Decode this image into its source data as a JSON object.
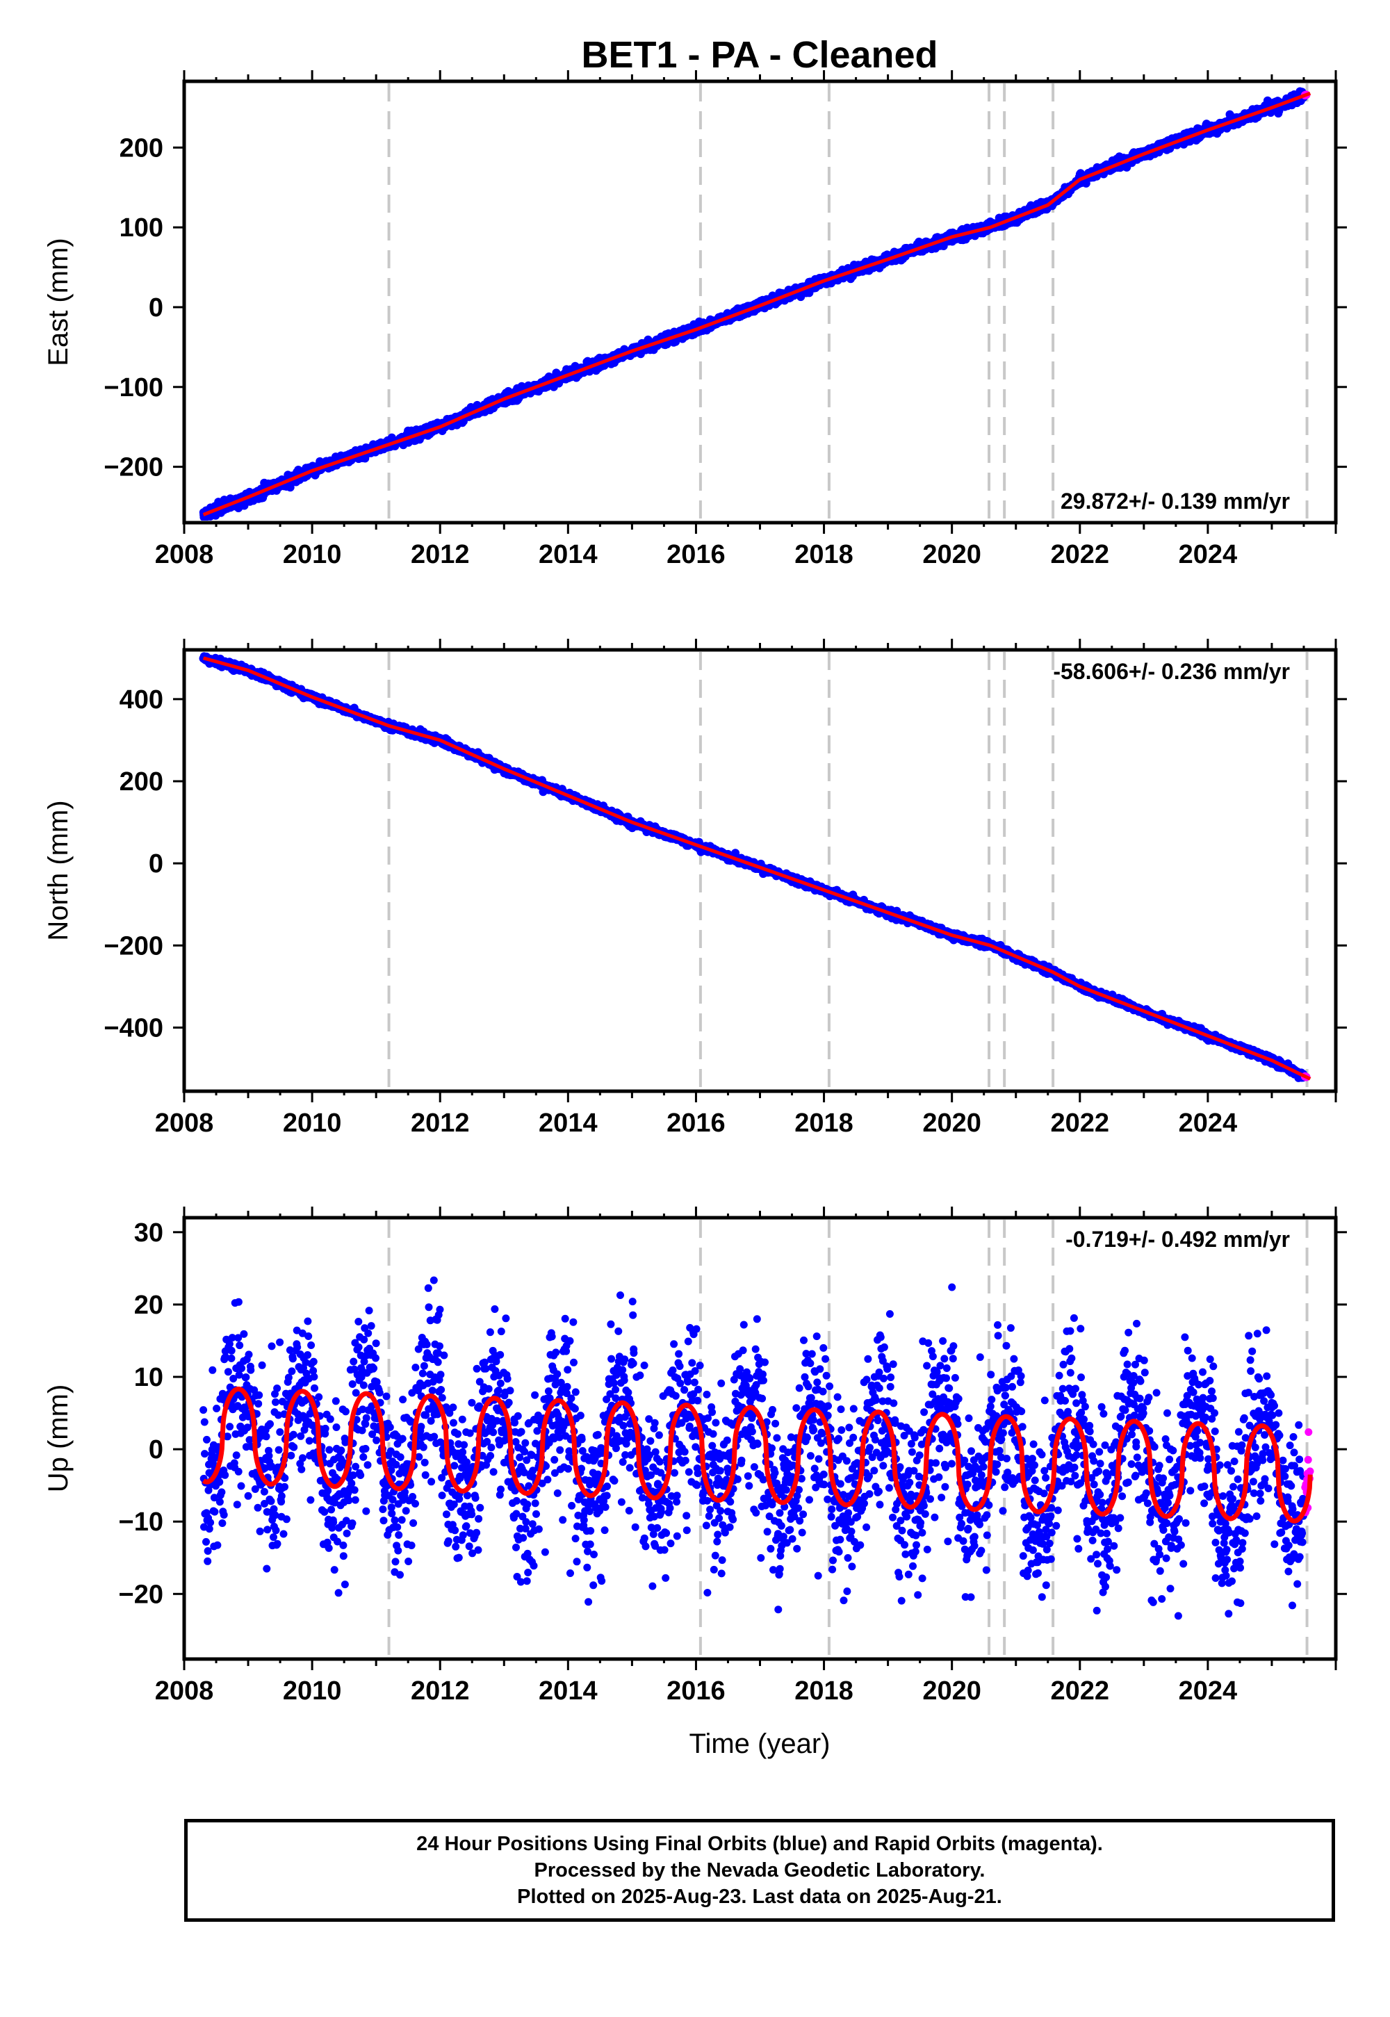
{
  "chart_data": {
    "type": "scatter",
    "title": "BET1  - PA - Cleaned",
    "xlabel": "Time (year)",
    "xlim": [
      2008,
      2026.0
    ],
    "xticks": [
      "2008",
      "2010",
      "2012",
      "2014",
      "2016",
      "2018",
      "2020",
      "2022",
      "2024"
    ],
    "discontinuities": [
      2011.2,
      2016.07,
      2018.08,
      2020.58,
      2020.82,
      2021.58,
      2025.55
    ],
    "series_colors": {
      "final": "#0000ff",
      "rapid": "#ff00ff",
      "model": "#ff0000",
      "steps": "#c8c8c8"
    },
    "panels": [
      {
        "ylabel": "East (mm)",
        "ylim": [
          -270,
          283
        ],
        "yticks": [
          "−200",
          "−100",
          "0",
          "100",
          "200"
        ],
        "ytick_values": [
          -200,
          -100,
          0,
          100,
          200
        ],
        "rate": "29.872+/- 0.139 mm/yr",
        "rate_position": "bottom-right",
        "trend": {
          "x": [
            2008.3,
            2009.0,
            2010.0,
            2011.2,
            2012.0,
            2013.0,
            2014.0,
            2015.0,
            2016.0,
            2017.0,
            2018.0,
            2019.0,
            2020.0,
            2020.6,
            2021.5,
            2022.0,
            2023.0,
            2024.0,
            2025.0,
            2025.6
          ],
          "y": [
            -260,
            -238,
            -205,
            -172,
            -150,
            -115,
            -85,
            -55,
            -28,
            2,
            33,
            60,
            88,
            100,
            128,
            160,
            192,
            222,
            250,
            268
          ]
        },
        "noise": 3
      },
      {
        "ylabel": "North (mm)",
        "ylim": [
          -555,
          520
        ],
        "yticks": [
          "−400",
          "−200",
          "0",
          "200",
          "400"
        ],
        "ytick_values": [
          -400,
          -200,
          0,
          200,
          400
        ],
        "rate": "-58.606+/- 0.236 mm/yr",
        "rate_position": "top-right",
        "trend": {
          "x": [
            2008.3,
            2009.0,
            2010.0,
            2011.2,
            2012.0,
            2013.0,
            2014.0,
            2015.0,
            2016.0,
            2017.0,
            2018.0,
            2019.0,
            2020.0,
            2020.6,
            2021.58,
            2022.0,
            2023.0,
            2024.0,
            2025.0,
            2025.6
          ],
          "y": [
            500,
            470,
            405,
            335,
            300,
            230,
            165,
            100,
            45,
            -10,
            -65,
            -120,
            -175,
            -200,
            -265,
            -300,
            -360,
            -420,
            -480,
            -525
          ]
        },
        "noise": 4
      },
      {
        "ylabel": "Up (mm)",
        "ylim": [
          -29,
          32
        ],
        "yticks": [
          "30",
          "20",
          "10",
          "0",
          "−10",
          "−20"
        ],
        "ytick_values": [
          30,
          20,
          10,
          0,
          -10,
          -20
        ],
        "rate": "-0.719+/- 0.492 mm/yr",
        "rate_position": "top-right",
        "seasonal": {
          "amplitude": 6.5,
          "peak_year_fraction": 0.85,
          "offset_start": 2.0,
          "offset_end": -3.5
        },
        "noise": 5
      }
    ],
    "note": [
      "24 Hour Positions Using Final Orbits (blue) and Rapid Orbits (magenta).",
      "Processed by the Nevada Geodetic Laboratory.",
      "Plotted on 2025-Aug-23. Last data on 2025-Aug-21."
    ]
  }
}
